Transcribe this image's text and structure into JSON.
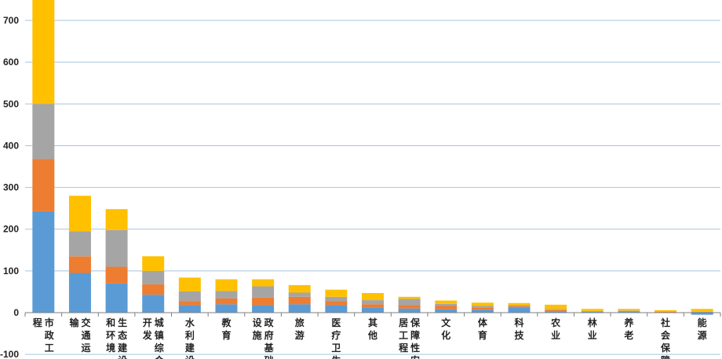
{
  "chart_data": {
    "type": "bar",
    "stacked": true,
    "categories": [
      "市政工程",
      "交通运输",
      "生态建设和环境…",
      "城镇综合开发",
      "水利建设",
      "教育",
      "政府基础设施",
      "旅游",
      "医疗卫生",
      "其他",
      "保障性安居工程",
      "文化",
      "体育",
      "科技",
      "农业",
      "林业",
      "养老",
      "社会保障",
      "能源"
    ],
    "category_lines": [
      [
        "市政工",
        "程"
      ],
      [
        "交通运",
        "输"
      ],
      [
        "生态建设",
        "和环境…"
      ],
      [
        "城镇综合",
        "开发"
      ],
      [
        "水利建设"
      ],
      [
        "教育"
      ],
      [
        "政府基础",
        "设施"
      ],
      [
        "旅游"
      ],
      [
        "医疗卫生"
      ],
      [
        "其他"
      ],
      [
        "保障性安",
        "居工程"
      ],
      [
        "文化"
      ],
      [
        "体育"
      ],
      [
        "科技"
      ],
      [
        "农业"
      ],
      [
        "林业"
      ],
      [
        "养老"
      ],
      [
        "社会保障"
      ],
      [
        "能源"
      ]
    ],
    "series": [
      {
        "color": "#5b9bd5",
        "values": [
          243,
          95,
          70,
          43,
          18,
          20,
          18,
          20,
          18,
          12,
          10,
          8,
          7,
          13,
          3,
          2,
          2,
          1,
          -5
        ]
      },
      {
        "color": "#ed7d31",
        "values": [
          125,
          40,
          40,
          25,
          10,
          14,
          18,
          18,
          10,
          8,
          8,
          8,
          5,
          2,
          3,
          1,
          2,
          1,
          1
        ]
      },
      {
        "color": "#a5a5a5",
        "values": [
          132,
          60,
          88,
          32,
          23,
          18,
          27,
          10,
          10,
          10,
          15,
          5,
          4,
          3,
          3,
          1,
          1,
          1,
          1
        ]
      },
      {
        "color": "#ffc000",
        "values": [
          260,
          85,
          50,
          35,
          33,
          28,
          17,
          18,
          17,
          17,
          5,
          8,
          8,
          5,
          10,
          5,
          4,
          3,
          7
        ]
      }
    ],
    "xlabel": "",
    "ylabel": "",
    "ylim": [
      -100,
      750
    ],
    "yticks": [
      -100,
      0,
      100,
      200,
      300,
      400,
      500,
      600,
      700
    ],
    "grid": true,
    "legend": "none"
  }
}
